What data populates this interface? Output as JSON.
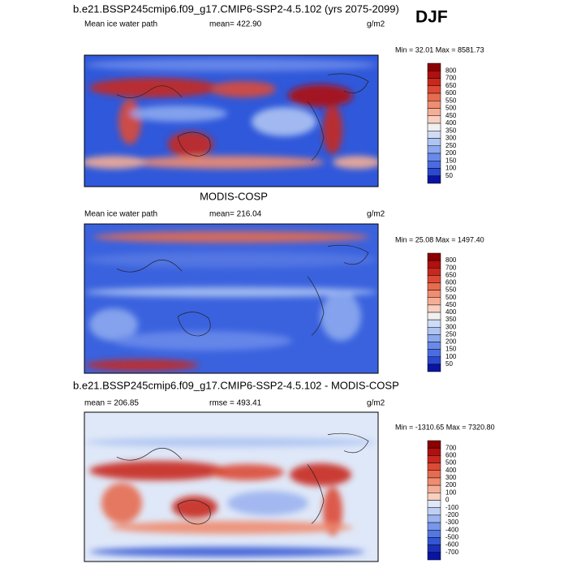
{
  "season": "DJF",
  "panels": [
    {
      "title": "b.e21.BSSP245cmip6.f09_g17.CMIP6-SSP2-4.5.102 (yrs 2075-2099)",
      "left": "Mean ice water path",
      "center": "mean= 422.90",
      "units": "g/m2",
      "minmax": "Min =  32.01 Max = 8581.73",
      "colorbar": {
        "labels": [
          800,
          700,
          650,
          600,
          550,
          500,
          450,
          400,
          350,
          300,
          250,
          200,
          150,
          100,
          50
        ],
        "colors": [
          "#8b0000",
          "#b01010",
          "#c8281e",
          "#dc4a36",
          "#e66c50",
          "#f08c70",
          "#f5ae96",
          "#f8cfc0",
          "#f0f0f0",
          "#cfdcf5",
          "#aec4f2",
          "#8ca8ee",
          "#6a8aea",
          "#4a6ce2",
          "#2a48d0",
          "#0a14a0"
        ]
      }
    },
    {
      "title": "MODIS-COSP",
      "left": "Mean ice water path",
      "center": "mean= 216.04",
      "units": "g/m2",
      "minmax": "Min =  25.08 Max = 1497.40",
      "colorbar": {
        "labels": [
          800,
          700,
          650,
          600,
          550,
          500,
          450,
          400,
          350,
          300,
          250,
          200,
          150,
          100,
          50
        ],
        "colors": [
          "#8b0000",
          "#b01010",
          "#c8281e",
          "#dc4a36",
          "#e66c50",
          "#f08c70",
          "#f5ae96",
          "#f8cfc0",
          "#f0f0f0",
          "#cfdcf5",
          "#aec4f2",
          "#8ca8ee",
          "#6a8aea",
          "#4a6ce2",
          "#2a48d0",
          "#0a14a0"
        ]
      }
    },
    {
      "title": "b.e21.BSSP245cmip6.f09_g17.CMIP6-SSP2-4.5.102 - MODIS-COSP",
      "left": "mean = 206.85",
      "center": "rmse = 493.41",
      "units": "g/m2",
      "minmax": "Min = -1310.65 Max = 7320.80",
      "colorbar": {
        "labels": [
          700,
          600,
          500,
          400,
          300,
          200,
          100,
          0,
          -100,
          -200,
          -300,
          -400,
          -500,
          -600,
          -700
        ],
        "colors": [
          "#8b0000",
          "#b01010",
          "#c8281e",
          "#dc4a36",
          "#e66c50",
          "#f08c70",
          "#f5ae96",
          "#f8cfc0",
          "#dfe8f8",
          "#c0d0f4",
          "#9cb4f0",
          "#7896ea",
          "#5478e2",
          "#3456d4",
          "#1a30b8",
          "#0a14a0"
        ]
      }
    }
  ]
}
